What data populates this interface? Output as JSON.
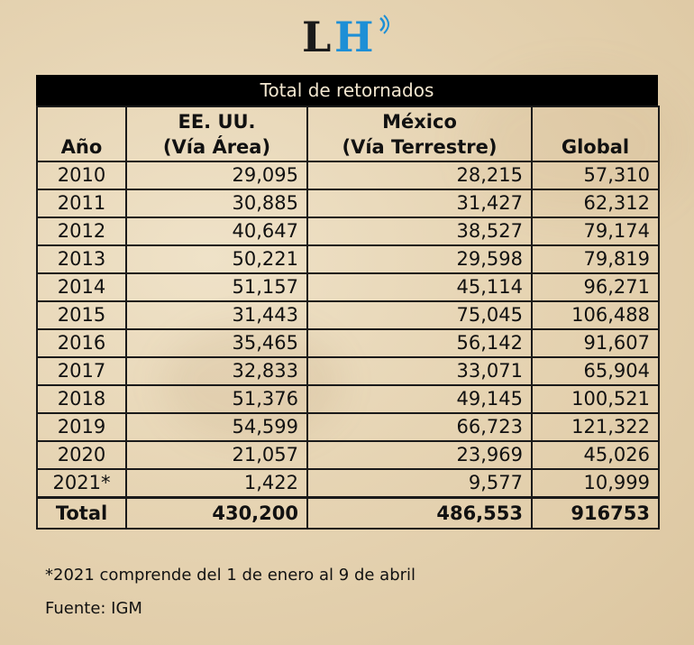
{
  "logo": {
    "text_l": "L",
    "text_h": "H"
  },
  "chart_data": {
    "type": "table",
    "title": "Total de retornados",
    "columns": [
      "Año",
      "EE. UU. (Vía Área)",
      "México (Vía Terrestre)",
      "Global"
    ],
    "header": {
      "year": "Año",
      "usa_line1": "EE. UU.",
      "usa_line2": "(Vía Área)",
      "mex_line1": "México",
      "mex_line2": "(Vía Terrestre)",
      "global": "Global"
    },
    "rows": [
      {
        "year": "2010",
        "usa": "29,095",
        "mex": "28,215",
        "global": "57,310"
      },
      {
        "year": "2011",
        "usa": "30,885",
        "mex": "31,427",
        "global": "62,312"
      },
      {
        "year": "2012",
        "usa": "40,647",
        "mex": "38,527",
        "global": "79,174"
      },
      {
        "year": "2013",
        "usa": "50,221",
        "mex": "29,598",
        "global": "79,819"
      },
      {
        "year": "2014",
        "usa": "51,157",
        "mex": "45,114",
        "global": "96,271"
      },
      {
        "year": "2015",
        "usa": "31,443",
        "mex": "75,045",
        "global": "106,488"
      },
      {
        "year": "2016",
        "usa": "35,465",
        "mex": "56,142",
        "global": "91,607"
      },
      {
        "year": "2017",
        "usa": "32,833",
        "mex": "33,071",
        "global": "65,904"
      },
      {
        "year": "2018",
        "usa": "51,376",
        "mex": "49,145",
        "global": "100,521"
      },
      {
        "year": "2019",
        "usa": "54,599",
        "mex": "66,723",
        "global": "121,322"
      },
      {
        "year": "2020",
        "usa": "21,057",
        "mex": "23,969",
        "global": "45,026"
      },
      {
        "year": "2021*",
        "usa": "1,422",
        "mex": "9,577",
        "global": "10,999"
      }
    ],
    "total": {
      "label": "Total",
      "usa": "430,200",
      "mex": "486,553",
      "global": "916753"
    }
  },
  "footnote": "*2021 comprende del 1 de enero al 9 de abril",
  "source": "Fuente: IGM",
  "colors": {
    "title_bar": "#000000",
    "logo_h": "#1d8fd6",
    "background": "#e6d4b3"
  }
}
